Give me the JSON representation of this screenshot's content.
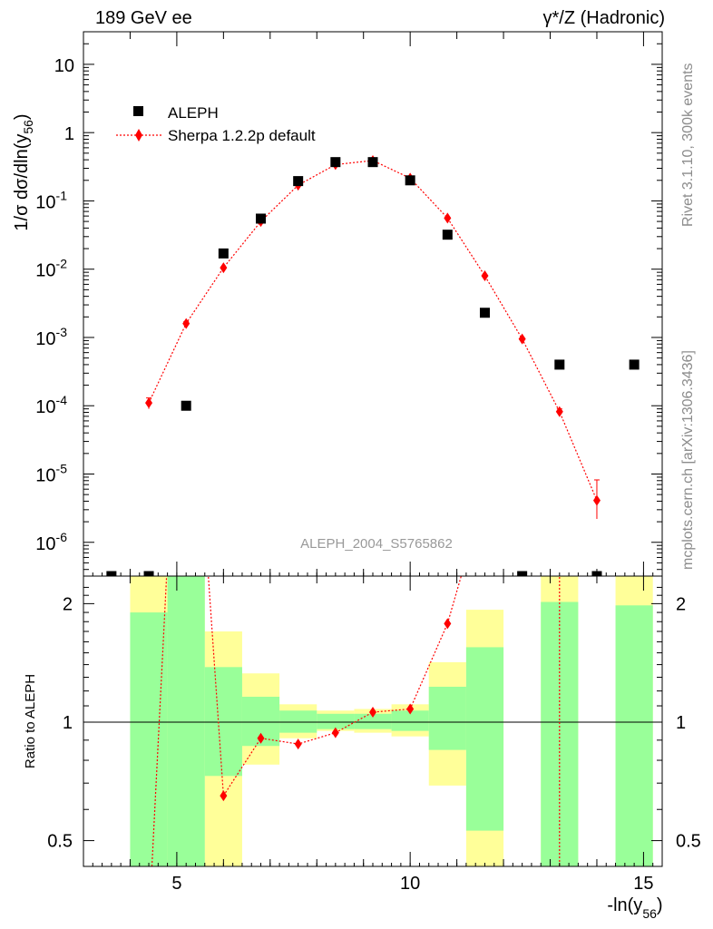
{
  "chart_data": [
    {
      "type": "scatter",
      "title_left": "189 GeV ee",
      "title_right": "γ*/Z (Hadronic)",
      "ylabel": "1/σ  dσ/dln(y56)",
      "ylabel_main": "1/σ  dσ/dln(y",
      "ylabel_sub": "56",
      "ylabel_close": ")",
      "yscale": "log",
      "ylim": [
        3.2e-07,
        30
      ],
      "xlim": [
        3.0,
        15.4
      ],
      "y_tick_labels": [
        {
          "value": 1e-06,
          "base": "10",
          "exp": "-6"
        },
        {
          "value": 1e-05,
          "base": "10",
          "exp": "-5"
        },
        {
          "value": 0.0001,
          "base": "10",
          "exp": "-4"
        },
        {
          "value": 0.001,
          "base": "10",
          "exp": "-3"
        },
        {
          "value": 0.01,
          "base": "10",
          "exp": "-2"
        },
        {
          "value": 0.1,
          "base": "10",
          "exp": "-1"
        },
        {
          "value": 1,
          "base": "1",
          "exp": ""
        },
        {
          "value": 10,
          "base": "10",
          "exp": ""
        }
      ],
      "legend": [
        "ALEPH",
        "Sherpa 1.2.2p default"
      ],
      "legend_position": "top-left",
      "watermark": "ALEPH_2004_S5765862",
      "series": [
        {
          "name": "ALEPH",
          "marker": "square",
          "color": "#000000",
          "x": [
            3.6,
            4.4,
            5.2,
            6.0,
            6.8,
            7.6,
            8.4,
            9.2,
            10.0,
            10.8,
            11.6,
            12.4,
            13.2,
            14.0,
            14.8
          ],
          "y": [
            3.2e-07,
            3.2e-07,
            0.0001,
            0.017,
            0.055,
            0.195,
            0.37,
            0.37,
            0.2,
            0.032,
            0.0023,
            3.2e-07,
            0.0004,
            3.2e-07,
            0.0004
          ]
        },
        {
          "name": "Sherpa 1.2.2p default",
          "marker": "diamond",
          "color": "#ff0000",
          "x": [
            4.4,
            5.2,
            6.0,
            6.8,
            7.6,
            8.4,
            9.2,
            10.0,
            10.8,
            11.6,
            12.4,
            13.2,
            14.0
          ],
          "y": [
            0.00011,
            0.0016,
            0.0105,
            0.05,
            0.17,
            0.34,
            0.39,
            0.215,
            0.056,
            0.008,
            0.00095,
            8.2e-05,
            4.1e-06
          ],
          "err_low": [
            9e-05,
            0.0015,
            0.0102,
            0.049,
            0.168,
            0.337,
            0.386,
            0.213,
            0.055,
            0.0078,
            0.00092,
            7.5e-05,
            2.2e-06
          ],
          "err_high": [
            0.00013,
            0.0017,
            0.0108,
            0.051,
            0.172,
            0.343,
            0.394,
            0.217,
            0.057,
            0.0082,
            0.00098,
            9e-05,
            8.2e-06
          ]
        }
      ]
    },
    {
      "type": "line",
      "ylabel": "Ratio to ALEPH",
      "yscale": "log",
      "ylim": [
        0.43,
        2.35
      ],
      "xlim": [
        3.0,
        15.4
      ],
      "xlabel": "-ln(y56)",
      "xlabel_main": "-ln(y",
      "xlabel_sub": "56",
      "xlabel_close": ")",
      "x_tick_labels": [
        "5",
        "10",
        "15"
      ],
      "x_tick_values": [
        5,
        10,
        15
      ],
      "y_tick_labels": [
        "0.5",
        "1",
        "2"
      ],
      "y_tick_values": [
        0.5,
        1,
        2
      ],
      "bands": [
        {
          "x0": 4.0,
          "x1": 4.8,
          "y1_lo": 0.3,
          "y1_hi": 1.9,
          "y2_lo": 0.3,
          "y2_hi": 2.5
        },
        {
          "x0": 4.8,
          "x1": 5.6,
          "y1_lo": 0.3,
          "y1_hi": 2.5,
          "y2_lo": 0.3,
          "y2_hi": 2.5
        },
        {
          "x0": 5.6,
          "x1": 6.4,
          "y1_lo": 0.73,
          "y1_hi": 1.38,
          "y2_lo": 0.3,
          "y2_hi": 1.7
        },
        {
          "x0": 6.4,
          "x1": 7.2,
          "y1_lo": 0.87,
          "y1_hi": 1.16,
          "y2_lo": 0.78,
          "y2_hi": 1.33
        },
        {
          "x0": 7.2,
          "x1": 8.0,
          "y1_lo": 0.94,
          "y1_hi": 1.07,
          "y2_lo": 0.91,
          "y2_hi": 1.11
        },
        {
          "x0": 8.0,
          "x1": 8.8,
          "y1_lo": 0.96,
          "y1_hi": 1.05,
          "y2_lo": 0.95,
          "y2_hi": 1.07
        },
        {
          "x0": 8.8,
          "x1": 9.6,
          "y1_lo": 0.96,
          "y1_hi": 1.05,
          "y2_lo": 0.94,
          "y2_hi": 1.08
        },
        {
          "x0": 9.6,
          "x1": 10.4,
          "y1_lo": 0.95,
          "y1_hi": 1.07,
          "y2_lo": 0.92,
          "y2_hi": 1.11
        },
        {
          "x0": 10.4,
          "x1": 11.2,
          "y1_lo": 0.85,
          "y1_hi": 1.23,
          "y2_lo": 0.69,
          "y2_hi": 1.42
        },
        {
          "x0": 11.2,
          "x1": 12.0,
          "y1_lo": 0.53,
          "y1_hi": 1.55,
          "y2_lo": 0.3,
          "y2_hi": 1.93
        },
        {
          "x0": 12.8,
          "x1": 13.6,
          "y1_lo": 0.3,
          "y1_hi": 2.02,
          "y2_lo": 0.3,
          "y2_hi": 2.5
        },
        {
          "x0": 14.4,
          "x1": 15.2,
          "y1_lo": 0.3,
          "y1_hi": 1.98,
          "y2_lo": 0.3,
          "y2_hi": 2.5
        }
      ],
      "ratio_series": {
        "name": "Sherpa 1.2.2p default",
        "color": "#ff0000",
        "x": [
          6.0,
          6.8,
          7.6,
          8.4,
          9.2,
          10.0,
          10.8
        ],
        "y": [
          0.65,
          0.91,
          0.88,
          0.94,
          1.06,
          1.08,
          1.78
        ]
      },
      "ratio_lines": [
        {
          "x": [
            4.4,
            4.8
          ],
          "y": [
            0.3,
            2.6
          ]
        },
        {
          "x": [
            5.65,
            6.0
          ],
          "y": [
            2.6,
            0.65
          ]
        },
        {
          "x": [
            10.8,
            11.2
          ],
          "y": [
            1.78,
            2.6
          ]
        },
        {
          "x": [
            13.2,
            13.2
          ],
          "y": [
            2.6,
            0.3
          ]
        }
      ]
    }
  ],
  "side_labels": {
    "top": "Rivet 3.1.10,  300k events",
    "bottom": "mcplots.cern.ch [arXiv:1306.3436]"
  }
}
